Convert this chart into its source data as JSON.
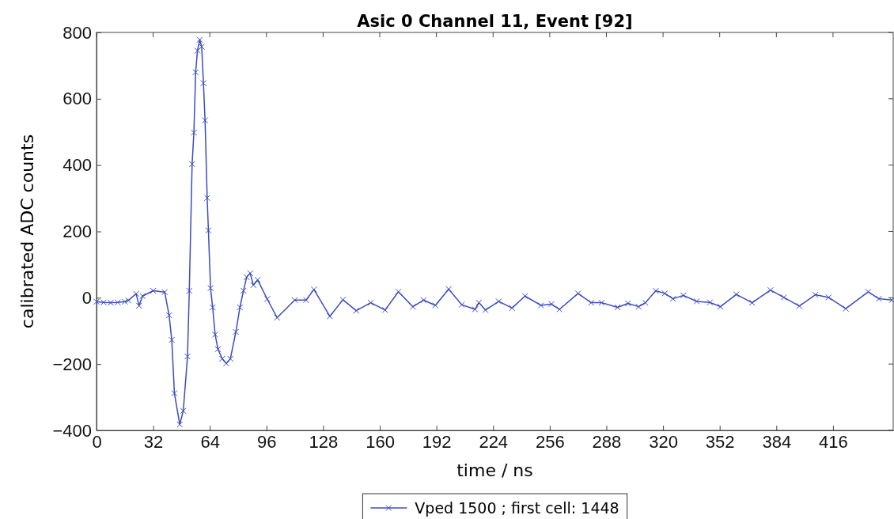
{
  "chart_data": {
    "type": "line",
    "title": "Asic 0 Channel 11, Event [92]",
    "xlabel": "time / ns",
    "ylabel": "calibrated ADC counts",
    "xlim": [
      0,
      450
    ],
    "xticks": [
      0,
      32,
      64,
      96,
      128,
      160,
      192,
      224,
      256,
      288,
      320,
      352,
      384,
      416
    ],
    "ylim": [
      -400,
      800
    ],
    "yticks": [
      -400,
      -200,
      0,
      200,
      400,
      600,
      800
    ],
    "grid": false,
    "legend": "bottom",
    "marker": "cross",
    "line_style": "solid",
    "series": [
      {
        "name": "Vped 1500 ; first cell: 1448",
        "color": "#3b4cc0",
        "x": [
          0,
          4,
          8,
          12,
          16,
          18,
          22.4,
          24,
          26,
          32,
          38.5,
          41,
          42.5,
          44,
          47,
          49,
          51.4,
          52.4,
          54,
          55,
          56,
          57,
          58.3,
          59.4,
          60.4,
          61.3,
          62.5,
          63.2,
          64.4,
          65.6,
          67,
          68.6,
          71,
          73.3,
          75.6,
          78.7,
          81,
          83,
          84.8,
          86.8,
          88.6,
          91,
          96.4,
          102,
          112,
          118.4,
          122.8,
          131.8,
          139.2,
          146.7,
          154.9,
          163,
          170.5,
          178.7,
          184.7,
          191.4,
          198.9,
          206.3,
          213.8,
          216,
          219.7,
          227.2,
          234.7,
          242,
          251,
          257,
          261.5,
          272,
          279.4,
          285.3,
          294.3,
          300.2,
          306.2,
          310,
          315.9,
          321,
          325.6,
          331.5,
          339,
          346.5,
          352.4,
          361.4,
          370.3,
          380.7,
          388.2,
          397,
          406,
          413.5,
          423.2,
          435.9,
          441.9,
          449.3
        ],
        "values": [
          -12,
          -14,
          -15,
          -14,
          -12,
          -8,
          12,
          -24,
          5,
          21,
          17,
          -53,
          -127,
          -288,
          -382,
          -341,
          -177,
          21,
          403,
          498,
          680,
          745,
          778,
          757,
          647,
          535,
          301,
          203,
          29,
          -29,
          -111,
          -155,
          -184,
          -198,
          -184,
          -103,
          -29,
          21,
          62,
          74,
          38,
          54,
          -4,
          -60,
          -7,
          -7,
          25,
          -56,
          -6,
          -39,
          -15,
          -37,
          18,
          -27,
          -7,
          -23,
          26,
          -21,
          -35,
          -15,
          -37,
          -11,
          -31,
          5,
          -23,
          -19,
          -35,
          13,
          -15,
          -15,
          -29,
          -17,
          -27,
          -15,
          21,
          13,
          -3,
          7,
          -11,
          -14,
          -27,
          10,
          -15,
          23,
          1,
          -25,
          9,
          1,
          -33,
          18,
          -3,
          -7
        ]
      }
    ]
  }
}
